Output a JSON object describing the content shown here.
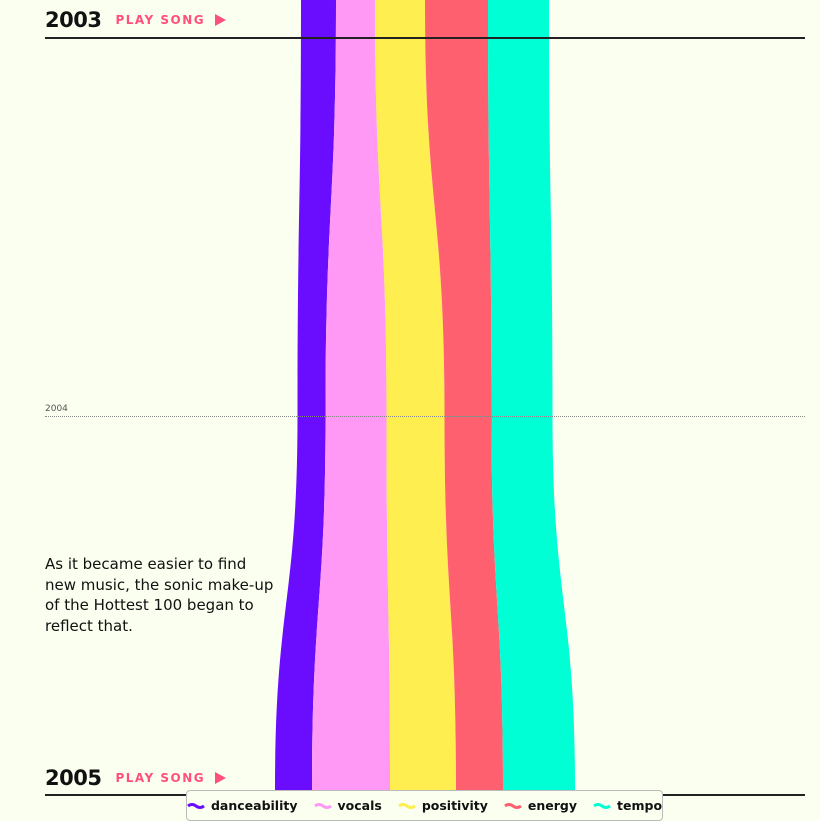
{
  "years": {
    "top": "2003",
    "mid": "2004",
    "bottom": "2005"
  },
  "play_label": "PLAY SONG",
  "narrative": "As it became easier to find new music, the sonic make-up of the Hottest 100 began to reflect that.",
  "chart_data": {
    "type": "area",
    "subtype": "streamgraph",
    "x": [
      "2003",
      "2004",
      "2005"
    ],
    "series": [
      {
        "name": "danceability",
        "color": "#6a0dff",
        "values": [
          0.35,
          0.28,
          0.37
        ]
      },
      {
        "name": "vocals",
        "color": "#ff99f5",
        "values": [
          0.39,
          0.61,
          0.78
        ]
      },
      {
        "name": "positivity",
        "color": "#ffee50",
        "values": [
          0.5,
          0.58,
          0.66
        ]
      },
      {
        "name": "energy",
        "color": "#ff6070",
        "values": [
          0.63,
          0.47,
          0.47
        ]
      },
      {
        "name": "tempo",
        "color": "#00ffd5",
        "values": [
          0.61,
          0.61,
          0.72
        ]
      }
    ],
    "legend": "bottom",
    "grid": false
  }
}
